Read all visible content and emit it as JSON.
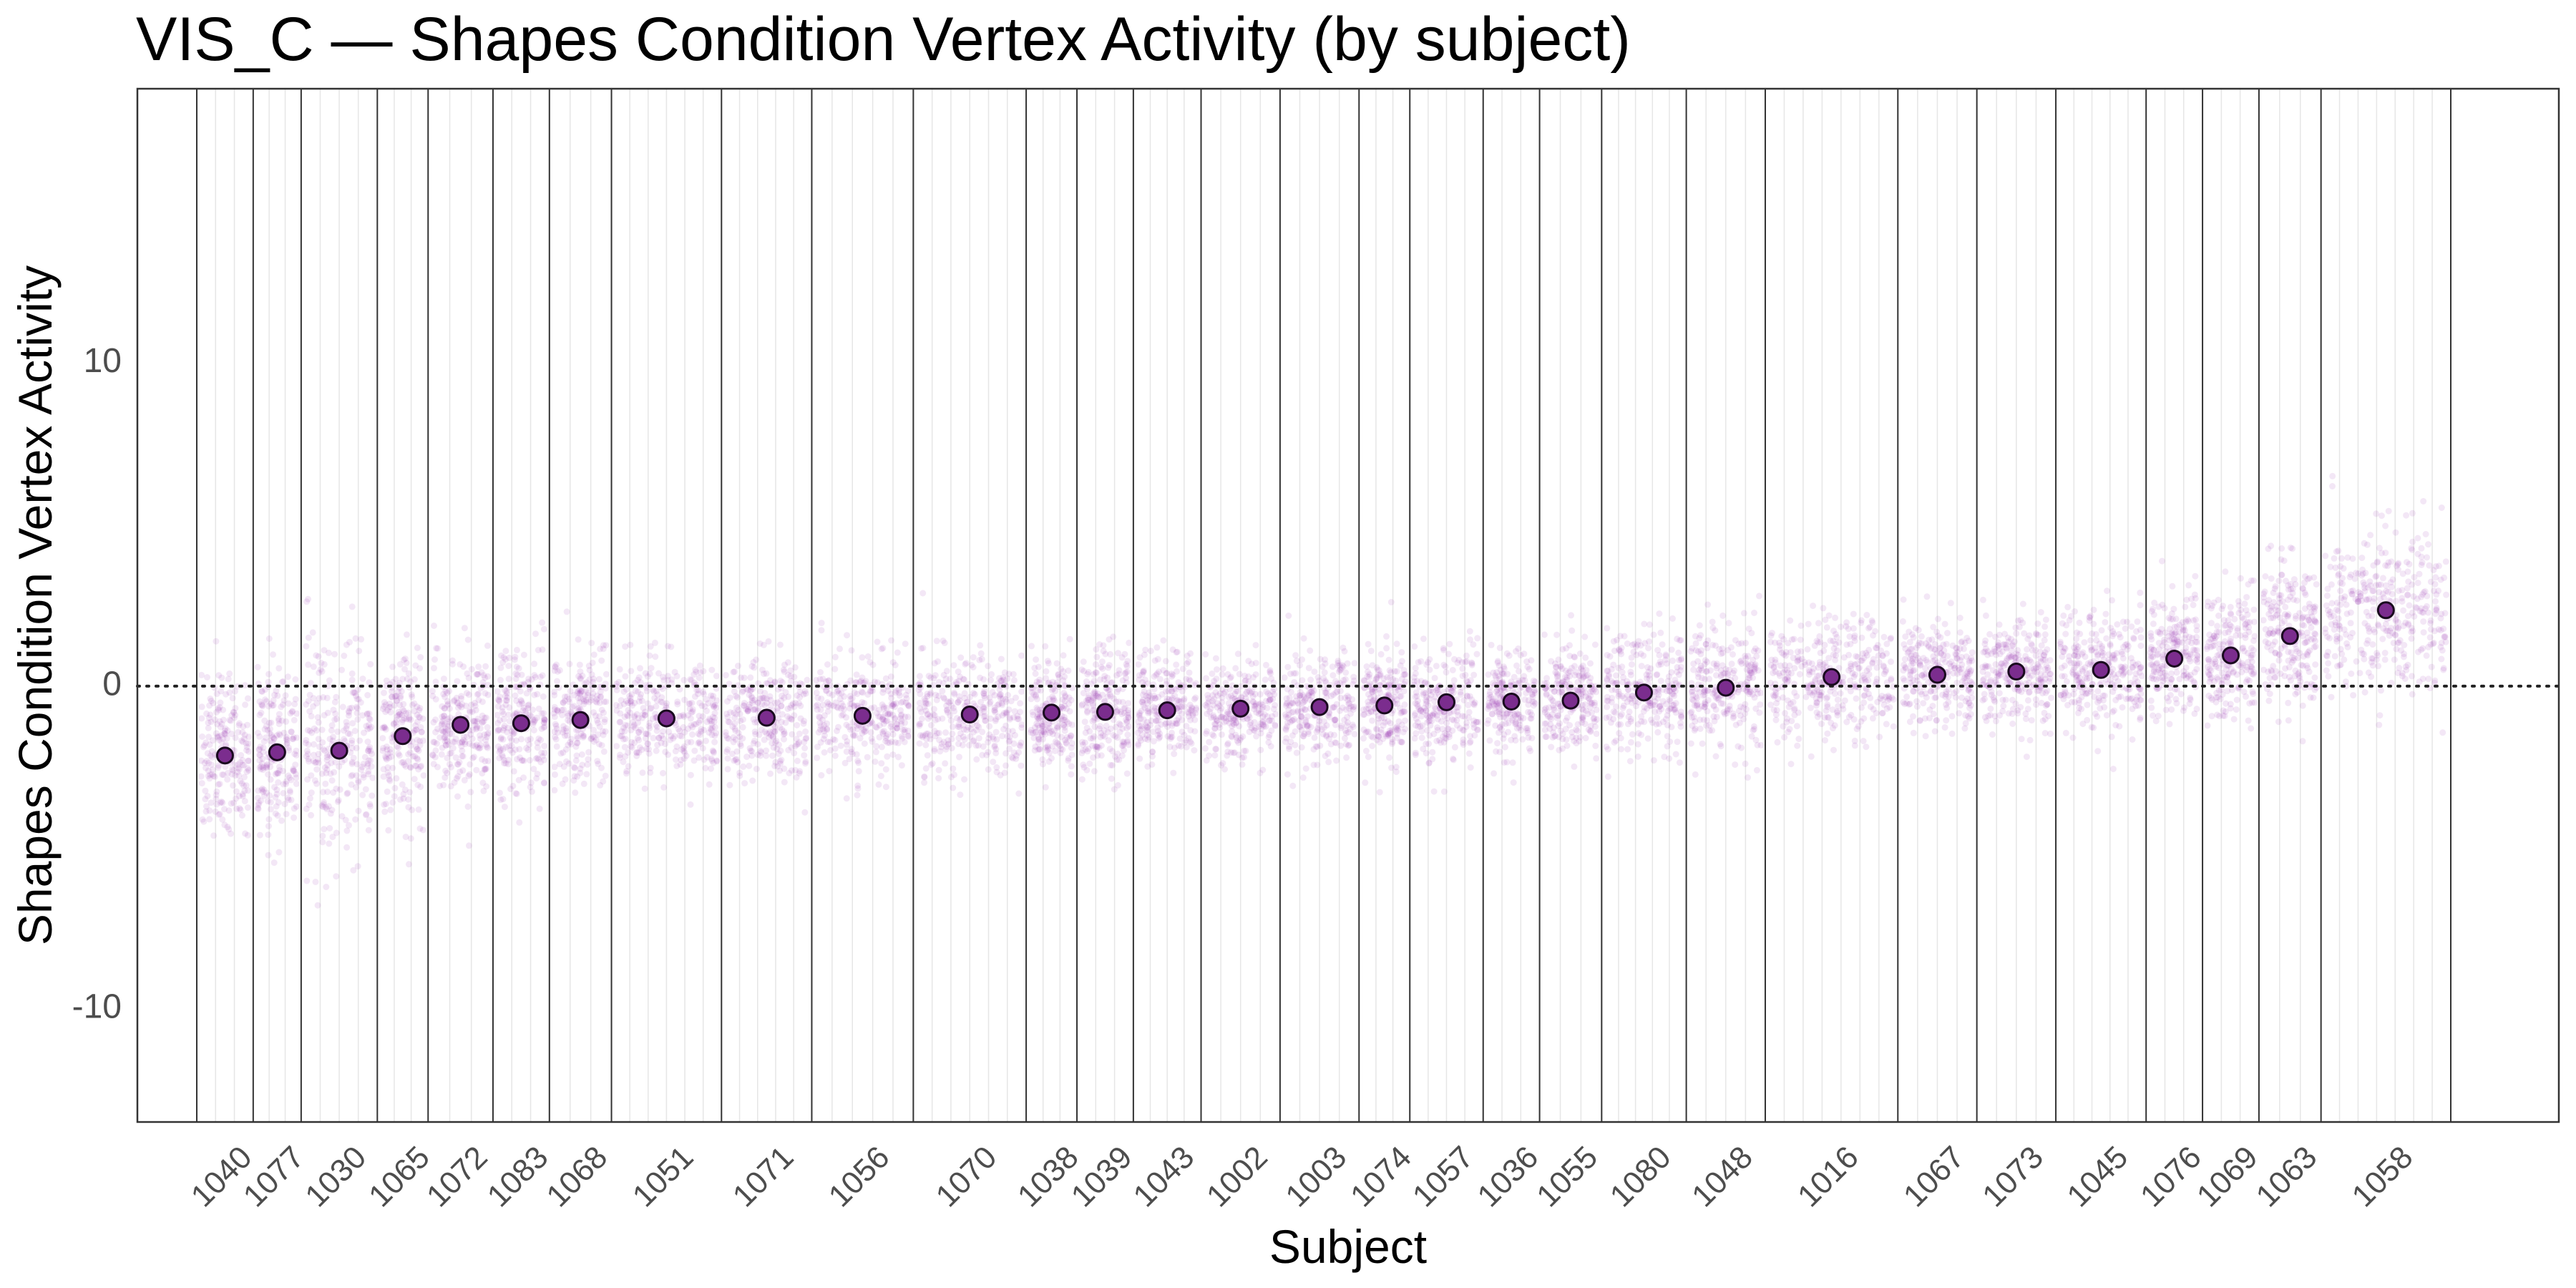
{
  "chart_data": {
    "type": "scatter",
    "title": "VIS_C — Shapes Condition Vertex Activity (by subject)",
    "xlabel": "Subject",
    "ylabel": "Shapes Condition Vertex Activity",
    "ylim": [
      -13.5,
      18.5
    ],
    "yticks": [
      -10,
      0,
      10
    ],
    "reference_line_y": 0,
    "grid": false,
    "colors": {
      "points": "#8e24aa",
      "mean_fill": "#7b2d8e",
      "mean_stroke": "#1a0a1f",
      "divider": "#333333"
    },
    "categories": [
      "1040",
      "1077",
      "1030",
      "1065",
      "1072",
      "1083",
      "1068",
      "1051",
      "1071",
      "1056",
      "1070",
      "1038",
      "1039",
      "1043",
      "1002",
      "1003",
      "1074",
      "1057",
      "1036",
      "1055",
      "1080",
      "1048",
      "1016",
      "1067",
      "1073",
      "1045",
      "1076",
      "1069",
      "1063",
      "1058"
    ],
    "series": [
      {
        "name": "",
        "values": [
          -2.15,
          -2.05,
          -2.0,
          -1.55,
          -1.2,
          -1.15,
          -1.05,
          -1.0,
          -0.98,
          -0.92,
          -0.88,
          -0.82,
          -0.8,
          -0.75,
          -0.7,
          -0.65,
          -0.6,
          -0.5,
          -0.48,
          -0.45,
          -0.2,
          -0.05,
          0.28,
          0.35,
          0.45,
          0.5,
          0.85,
          0.95,
          1.55,
          2.35
        ]
      }
    ],
    "spread": [
      1.2,
      1.3,
      1.6,
      1.2,
      1.1,
      1.1,
      1.0,
      0.9,
      1.0,
      0.9,
      0.9,
      0.9,
      1.0,
      0.9,
      0.8,
      0.8,
      0.9,
      0.9,
      0.8,
      0.8,
      0.9,
      1.0,
      0.9,
      0.8,
      0.8,
      0.9,
      0.9,
      1.0,
      1.1,
      1.3
    ],
    "band_widths": [
      1.0,
      0.85,
      1.35,
      0.9,
      1.15,
      1.0,
      1.1,
      1.95,
      1.6,
      1.8,
      2.0,
      0.9,
      1.0,
      1.2,
      1.4,
      1.4,
      0.9,
      1.3,
      1.0,
      1.1,
      1.5,
      1.4,
      2.35,
      1.4,
      1.4,
      1.6,
      1.0,
      1.0,
      1.1,
      2.3
    ]
  }
}
